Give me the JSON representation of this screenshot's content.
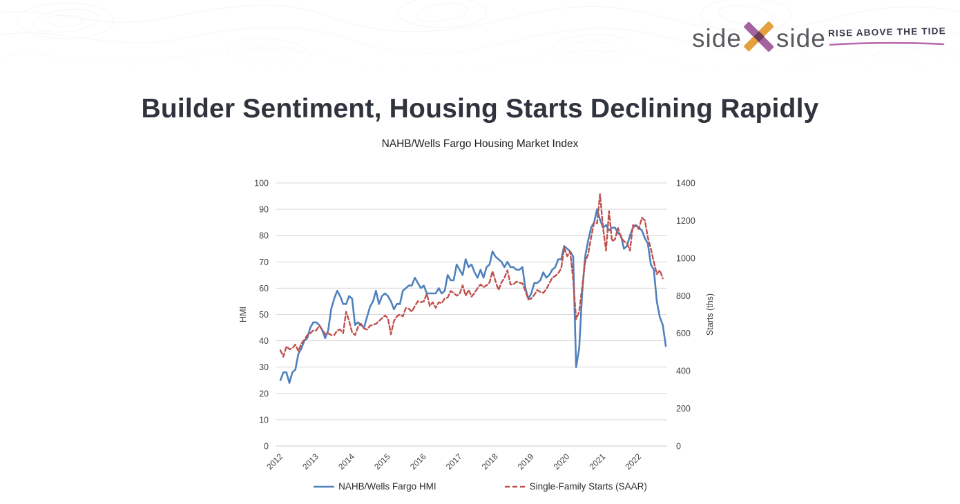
{
  "header": {
    "logo_word_left": "side",
    "logo_word_right": "side",
    "logo_x_colors": {
      "purple": "#a4639f",
      "orange": "#e5a03e",
      "overlap": "#6d4055"
    },
    "tagline": "RISE ABOVE THE TIDE",
    "tagline_underline_color": "#b76bb2"
  },
  "slide": {
    "title": "Builder Sentiment, Housing Starts Declining Rapidly"
  },
  "chart_data": {
    "type": "line",
    "title": "NAHB/Wells Fargo Housing Market Index",
    "grid": true,
    "legend_position": "bottom",
    "left_axis": {
      "label": "HMI",
      "range": [
        0,
        100
      ],
      "ticks": [
        0,
        10,
        20,
        30,
        40,
        50,
        60,
        70,
        80,
        90,
        100
      ]
    },
    "right_axis": {
      "label": "Starts (ths)",
      "range": [
        0,
        1400
      ],
      "ticks": [
        0,
        200,
        400,
        600,
        800,
        1000,
        1200,
        1400
      ]
    },
    "x_axis": {
      "tick_labels": [
        "2012",
        "2013",
        "2014",
        "2015",
        "2016",
        "2017",
        "2018",
        "2019",
        "2020",
        "2021",
        "2022"
      ],
      "start_year": 2012,
      "months_per_step": 1
    },
    "series": [
      {
        "name": "NAHB/Wells Fargo HMI",
        "axis": "left",
        "style": "solid",
        "color": "#4f81bd",
        "start": "2012-01",
        "values": [
          25,
          28,
          28,
          24,
          28,
          29,
          35,
          37,
          40,
          41,
          45,
          47,
          47,
          46,
          44,
          41,
          44,
          52,
          56,
          59,
          57,
          54,
          54,
          57,
          56,
          46,
          47,
          46,
          45,
          49,
          53,
          55,
          59,
          54,
          57,
          58,
          57,
          55,
          52,
          54,
          54,
          59,
          60,
          61,
          61,
          64,
          62,
          60,
          61,
          58,
          58,
          58,
          58,
          60,
          58,
          59,
          65,
          63,
          63,
          69,
          67,
          65,
          71,
          68,
          69,
          66,
          64,
          67,
          64,
          68,
          69,
          74,
          72,
          71,
          70,
          68,
          70,
          68,
          68,
          67,
          67,
          68,
          60,
          56,
          58,
          62,
          62,
          63,
          66,
          64,
          65,
          67,
          68,
          71,
          71,
          76,
          75,
          74,
          72,
          30,
          37,
          58,
          72,
          78,
          83,
          85,
          90,
          86,
          83,
          84,
          82,
          83,
          83,
          81,
          80,
          75,
          76,
          80,
          83,
          84,
          83,
          82,
          79,
          77,
          69,
          67,
          55,
          49,
          46,
          38
        ]
      },
      {
        "name": "Single-Family Starts (SAAR)",
        "axis": "right",
        "style": "dashed",
        "color": "#c0504d",
        "start": "2012-01",
        "values": [
          510,
          475,
          530,
          515,
          520,
          540,
          505,
          545,
          565,
          590,
          600,
          615,
          615,
          640,
          620,
          595,
          600,
          590,
          590,
          615,
          620,
          600,
          715,
          665,
          605,
          590,
          635,
          650,
          625,
          620,
          640,
          645,
          650,
          665,
          680,
          695,
          680,
          595,
          665,
          690,
          700,
          690,
          735,
          730,
          715,
          745,
          770,
          765,
          770,
          810,
          745,
          765,
          735,
          765,
          760,
          785,
          790,
          825,
          815,
          800,
          810,
          855,
          800,
          830,
          795,
          815,
          840,
          860,
          845,
          855,
          870,
          930,
          877,
          830,
          870,
          895,
          935,
          860,
          860,
          875,
          870,
          865,
          825,
          780,
          785,
          805,
          830,
          820,
          815,
          835,
          865,
          895,
          905,
          920,
          945,
          1055,
          1010,
          1035,
          885,
          675,
          715,
          845,
          980,
          1020,
          1110,
          1190,
          1185,
          1340,
          1160,
          1040,
          1250,
          1090,
          1100,
          1160,
          1110,
          1090,
          1080,
          1040,
          1175,
          1170,
          1155,
          1215,
          1200,
          1110,
          1050,
          980,
          915,
          935,
          892
        ]
      }
    ],
    "colors": {
      "gridline": "#d9d9d9",
      "baseline": "#c8c8c8",
      "tick_text": "#3f3f3f"
    }
  }
}
